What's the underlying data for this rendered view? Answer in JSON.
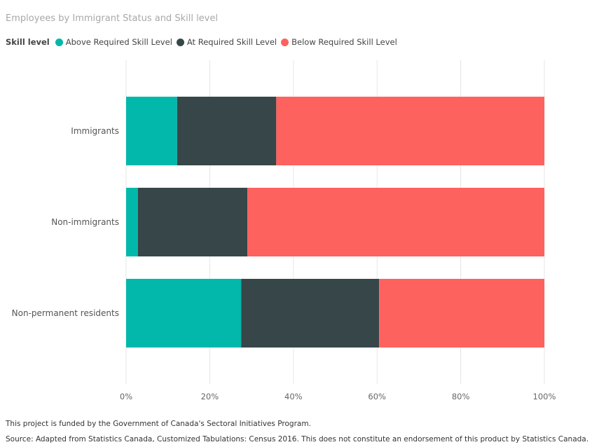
{
  "chart_data": {
    "type": "bar",
    "orientation": "horizontal",
    "stacked": "100%",
    "title": "Employees by Immigrant Status and Skill level",
    "legend_title": "Skill level",
    "legend_position": "top-left",
    "categories": [
      "Immigrants",
      "Non-immigrants",
      "Non-permanent residents"
    ],
    "series": [
      {
        "name": "Above Required Skill Level",
        "color": "#01B8AA",
        "values": [
          12.2,
          2.8,
          27.5
        ]
      },
      {
        "name": "At Required Skill Level",
        "color": "#374649",
        "values": [
          23.7,
          26.2,
          33.0
        ]
      },
      {
        "name": "Below Required Skill Level",
        "color": "#FD625E",
        "values": [
          64.1,
          71.0,
          39.5
        ]
      }
    ],
    "x_ticks": [
      "0%",
      "20%",
      "40%",
      "60%",
      "80%",
      "100%"
    ],
    "xlim": [
      0,
      100
    ],
    "grid": true
  },
  "footnotes": {
    "funding": "This project is funded by the Government of Canada's Sectoral Initiatives Program.",
    "source": "Source: Adapted from Statistics Canada, Customized Tabulations: Census 2016. This does not constitute an endorsement of this product by Statistics Canada."
  }
}
